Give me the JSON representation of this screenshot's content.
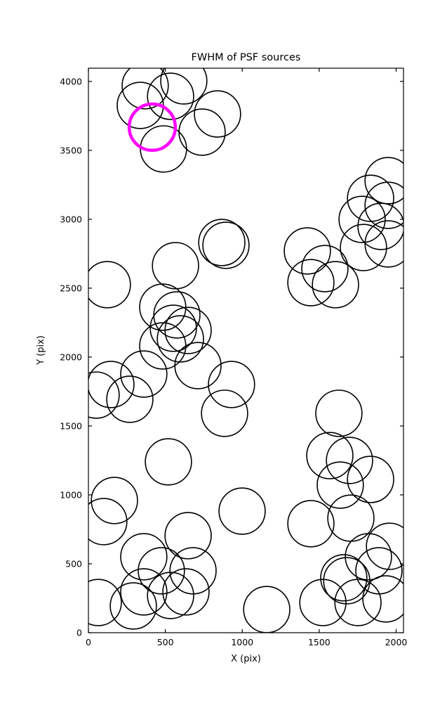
{
  "chart_data": {
    "type": "scatter",
    "title": "FWHM of PSF sources",
    "xlabel": "X (pix)",
    "ylabel": "Y (pix)",
    "xlim": [
      0,
      2048
    ],
    "ylim": [
      0,
      4096
    ],
    "xticks": [
      0,
      500,
      1000,
      1500,
      2000
    ],
    "yticks": [
      0,
      500,
      1000,
      1500,
      2000,
      2500,
      3000,
      3500,
      4000
    ],
    "grid": false,
    "legend": "none",
    "marker": "circle-outline",
    "circle_radius": 150,
    "line_color": "#000000",
    "highlight_color": "#ff00ff",
    "sources": [
      [
        369,
        3969
      ],
      [
        337,
        3826
      ],
      [
        534,
        3892
      ],
      [
        620,
        4004
      ],
      [
        839,
        3764
      ],
      [
        739,
        3632
      ],
      [
        488,
        3510
      ],
      [
        1948,
        3280
      ],
      [
        1834,
        3152
      ],
      [
        1948,
        3101
      ],
      [
        1779,
        2999
      ],
      [
        1902,
        2948
      ],
      [
        1948,
        2821
      ],
      [
        1788,
        2795
      ],
      [
        1423,
        2770
      ],
      [
        1537,
        2642
      ],
      [
        1446,
        2540
      ],
      [
        1606,
        2525
      ],
      [
        867,
        2831
      ],
      [
        894,
        2811
      ],
      [
        566,
        2663
      ],
      [
        123,
        2525
      ],
      [
        483,
        2362
      ],
      [
        575,
        2306
      ],
      [
        552,
        2209
      ],
      [
        598,
        2132
      ],
      [
        483,
        2081
      ],
      [
        648,
        2193
      ],
      [
        712,
        1938
      ],
      [
        360,
        1877
      ],
      [
        146,
        1801
      ],
      [
        269,
        1694
      ],
      [
        50,
        1724
      ],
      [
        930,
        1801
      ],
      [
        885,
        1592
      ],
      [
        520,
        1240
      ],
      [
        1569,
        1285
      ],
      [
        1697,
        1250
      ],
      [
        1637,
        1071
      ],
      [
        1834,
        1112
      ],
      [
        1628,
        1592
      ],
      [
        169,
        959
      ],
      [
        100,
        806
      ],
      [
        999,
        882
      ],
      [
        648,
        704
      ],
      [
        360,
        551
      ],
      [
        474,
        449
      ],
      [
        680,
        449
      ],
      [
        360,
        296
      ],
      [
        534,
        270
      ],
      [
        292,
        194
      ],
      [
        64,
        219
      ],
      [
        634,
        296
      ],
      [
        1159,
        168
      ],
      [
        1446,
        791
      ],
      [
        1706,
        831
      ],
      [
        1957,
        627
      ],
      [
        1820,
        551
      ],
      [
        1888,
        449
      ],
      [
        1660,
        398
      ],
      [
        1679,
        377
      ],
      [
        1934,
        245
      ],
      [
        1752,
        219
      ],
      [
        1524,
        219
      ]
    ],
    "highlighted_source": [
      415,
      3668
    ]
  }
}
